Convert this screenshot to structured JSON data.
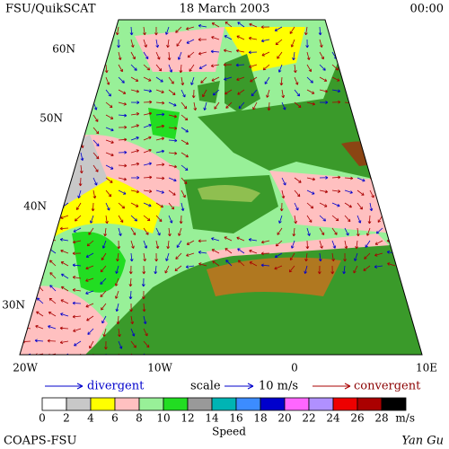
{
  "header": {
    "left": "FSU/QuikSCAT",
    "center": "18 March 2003",
    "right": "00:00"
  },
  "lat_labels": [
    "60N",
    "50N",
    "40N",
    "30N"
  ],
  "lon_labels": [
    "20W",
    "10W",
    "0",
    "10E"
  ],
  "key": {
    "divergent": "divergent",
    "scale": "scale",
    "scale_value": "10 m/s",
    "convergent": "convergent"
  },
  "colorbar": {
    "title": "Speed",
    "unit": "m/s",
    "ticks": [
      0,
      2,
      4,
      6,
      8,
      10,
      12,
      14,
      16,
      18,
      20,
      22,
      24,
      26,
      28
    ],
    "colors": [
      "#ffffff",
      "#c8c8c8",
      "#ffff00",
      "#ffc0c0",
      "#98f098",
      "#22dd22",
      "#999999",
      "#00b4b4",
      "#3c8cff",
      "#0000cc",
      "#ff66ff",
      "#b090ff",
      "#ee0000",
      "#aa0000",
      "#000000"
    ]
  },
  "footer": {
    "left": "COAPS-FSU",
    "right": "Yan Gu"
  }
}
